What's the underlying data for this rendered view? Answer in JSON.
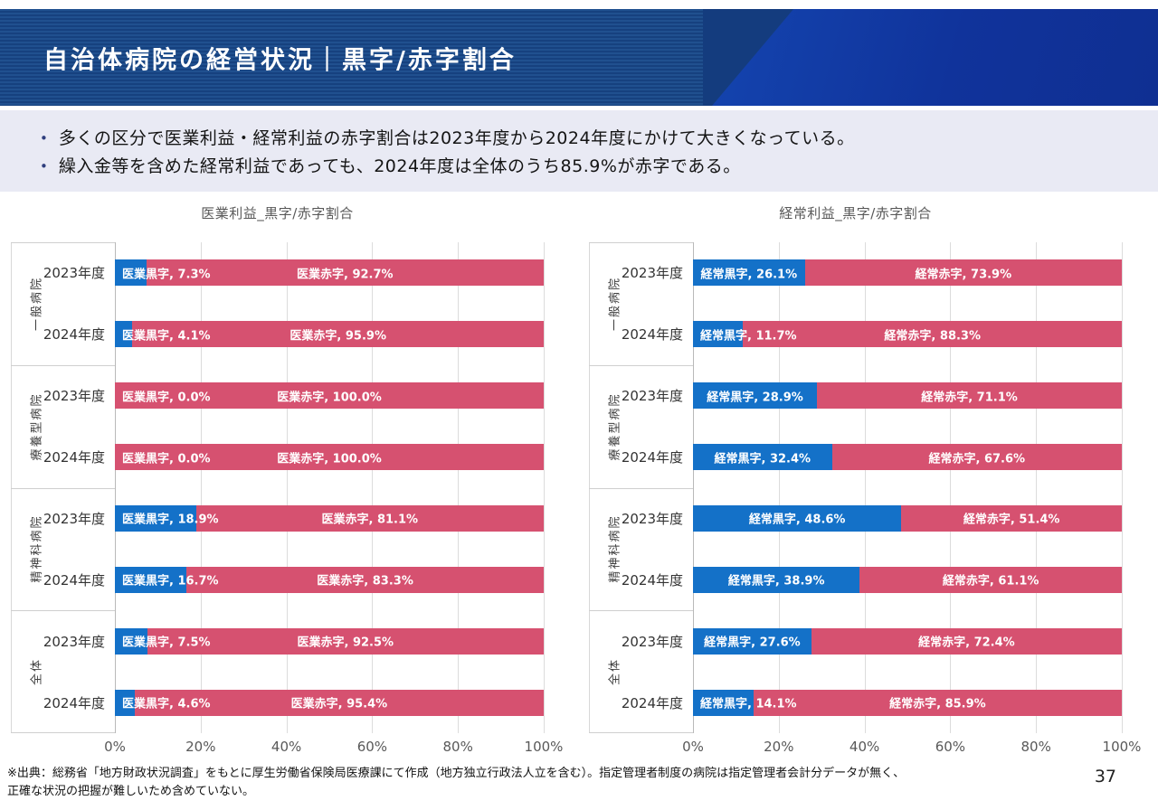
{
  "header": {
    "title": "自治体病院の経営状況｜黒字/赤字割合"
  },
  "summary": {
    "bullets": [
      "多くの区分で医業利益・経常利益の赤字割合は2023年度から2024年度にかけて大きくなっている。",
      "繰入金等を含めた経常利益であっても、2024年度は全体のうち85.9%が赤字である。"
    ]
  },
  "colors": {
    "surplus_blue": "#1471c8",
    "deficit_pink": "#d65170"
  },
  "chart_data": [
    {
      "type": "bar",
      "subtype": "horizontal-stacked-100pct",
      "title": "医業利益_黒字/赤字割合",
      "series": [
        "医業黒字",
        "医業赤字"
      ],
      "x_ticks": [
        "0%",
        "20%",
        "40%",
        "60%",
        "80%",
        "100%"
      ],
      "xlim": [
        0,
        100
      ],
      "grid": "vertical",
      "groups": [
        {
          "label": "一般病院",
          "rows": [
            {
              "year": "2023年度",
              "surplus": 7.3,
              "deficit": 92.7,
              "surplus_label": "医業黒字, 7.3%",
              "deficit_label": "医業赤字, 92.7%"
            },
            {
              "year": "2024年度",
              "surplus": 4.1,
              "deficit": 95.9,
              "surplus_label": "医業黒字, 4.1%",
              "deficit_label": "医業赤字, 95.9%"
            }
          ]
        },
        {
          "label": "療養型病院",
          "rows": [
            {
              "year": "2023年度",
              "surplus": 0.0,
              "deficit": 100.0,
              "surplus_label": "医業黒字, 0.0%",
              "deficit_label": "医業赤字, 100.0%"
            },
            {
              "year": "2024年度",
              "surplus": 0.0,
              "deficit": 100.0,
              "surplus_label": "医業黒字, 0.0%",
              "deficit_label": "医業赤字, 100.0%"
            }
          ]
        },
        {
          "label": "精神科病院",
          "rows": [
            {
              "year": "2023年度",
              "surplus": 18.9,
              "deficit": 81.1,
              "surplus_label": "医業黒字, 18.9%",
              "deficit_label": "医業赤字, 81.1%"
            },
            {
              "year": "2024年度",
              "surplus": 16.7,
              "deficit": 83.3,
              "surplus_label": "医業黒字, 16.7%",
              "deficit_label": "医業赤字, 83.3%"
            }
          ]
        },
        {
          "label": "全体",
          "rows": [
            {
              "year": "2023年度",
              "surplus": 7.5,
              "deficit": 92.5,
              "surplus_label": "医業黒字, 7.5%",
              "deficit_label": "医業赤字, 92.5%"
            },
            {
              "year": "2024年度",
              "surplus": 4.6,
              "deficit": 95.4,
              "surplus_label": "医業黒字, 4.6%",
              "deficit_label": "医業赤字, 95.4%"
            }
          ]
        }
      ]
    },
    {
      "type": "bar",
      "subtype": "horizontal-stacked-100pct",
      "title": "経常利益_黒字/赤字割合",
      "series": [
        "経常黒字",
        "経常赤字"
      ],
      "x_ticks": [
        "0%",
        "20%",
        "40%",
        "60%",
        "80%",
        "100%"
      ],
      "xlim": [
        0,
        100
      ],
      "grid": "vertical",
      "groups": [
        {
          "label": "一般病院",
          "rows": [
            {
              "year": "2023年度",
              "surplus": 26.1,
              "deficit": 73.9,
              "surplus_label": "経常黒字, 26.1%",
              "deficit_label": "経常赤字, 73.9%"
            },
            {
              "year": "2024年度",
              "surplus": 11.7,
              "deficit": 88.3,
              "surplus_label": "経常黒字, 11.7%",
              "deficit_label": "経常赤字, 88.3%"
            }
          ]
        },
        {
          "label": "療養型病院",
          "rows": [
            {
              "year": "2023年度",
              "surplus": 28.9,
              "deficit": 71.1,
              "surplus_label": "経常黒字, 28.9%",
              "deficit_label": "経常赤字, 71.1%"
            },
            {
              "year": "2024年度",
              "surplus": 32.4,
              "deficit": 67.6,
              "surplus_label": "経常黒字, 32.4%",
              "deficit_label": "経常赤字, 67.6%"
            }
          ]
        },
        {
          "label": "精神科病院",
          "rows": [
            {
              "year": "2023年度",
              "surplus": 48.6,
              "deficit": 51.4,
              "surplus_label": "経常黒字, 48.6%",
              "deficit_label": "経常赤字, 51.4%"
            },
            {
              "year": "2024年度",
              "surplus": 38.9,
              "deficit": 61.1,
              "surplus_label": "経常黒字, 38.9%",
              "deficit_label": "経常赤字, 61.1%"
            }
          ]
        },
        {
          "label": "全体",
          "rows": [
            {
              "year": "2023年度",
              "surplus": 27.6,
              "deficit": 72.4,
              "surplus_label": "経常黒字, 27.6%",
              "deficit_label": "経常赤字, 72.4%"
            },
            {
              "year": "2024年度",
              "surplus": 14.1,
              "deficit": 85.9,
              "surplus_label": "経常黒字, 14.1%",
              "deficit_label": "経常赤字, 85.9%"
            }
          ]
        }
      ]
    }
  ],
  "footnote": {
    "line1": "※出典：総務省「地方財政状況調査」をもとに厚生労働省保険局医療課にて作成（地方独立行政法人立を含む）。指定管理者制度の病院は指定管理者会計分データが無く、",
    "line2": "正確な状況の把握が難しいため含めていない。"
  },
  "page": {
    "number": "37"
  }
}
